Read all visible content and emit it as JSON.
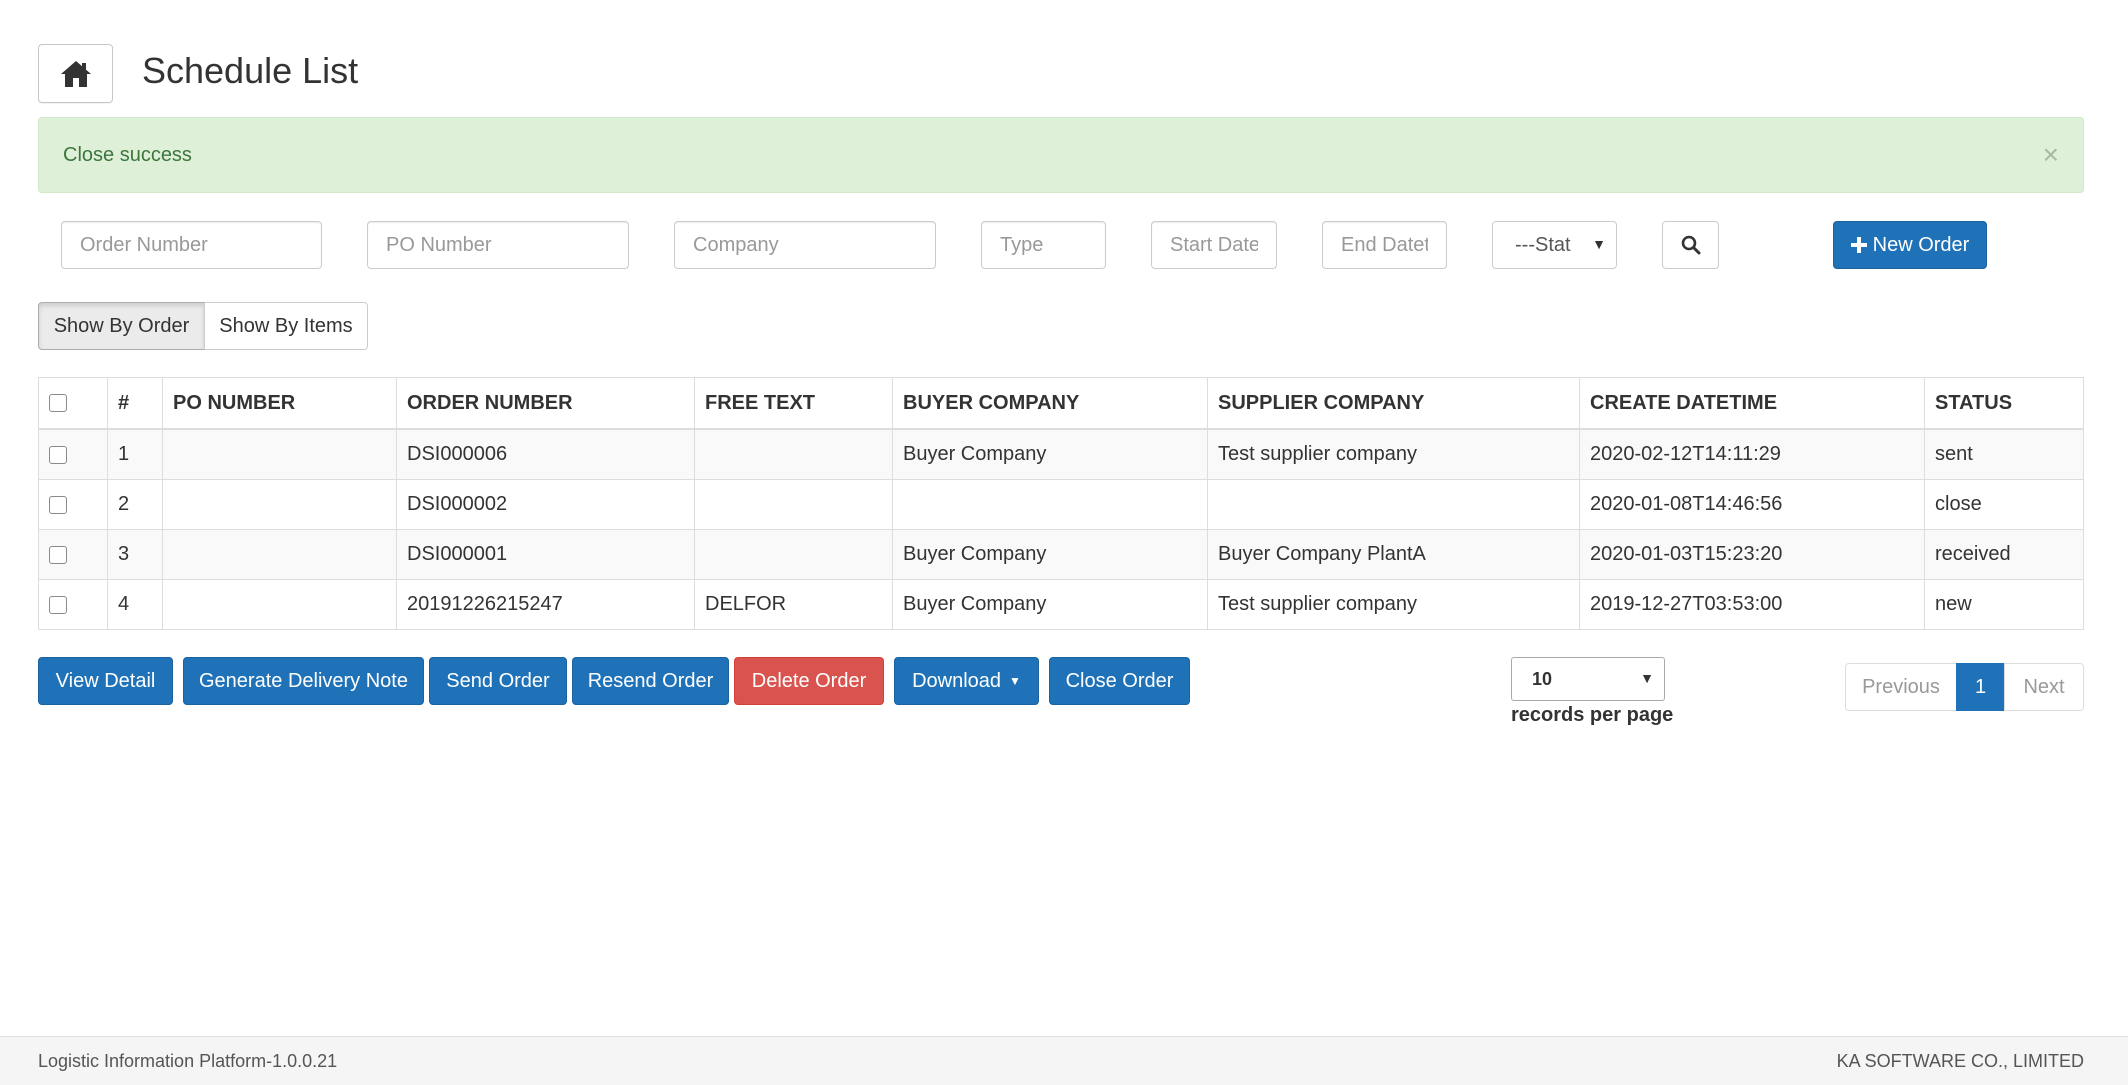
{
  "header": {
    "title": "Schedule List",
    "home_icon": "home-icon"
  },
  "alert": {
    "message": "Close success",
    "close_glyph": "×"
  },
  "filters": {
    "order_number_placeholder": "Order Number",
    "po_number_placeholder": "PO Number",
    "company_placeholder": "Company",
    "type_placeholder": "Type",
    "start_date_placeholder": "Start Date",
    "end_date_placeholder": "End Datet",
    "status_selected": "---Stat",
    "new_order_label": "New Order"
  },
  "view_toggle": {
    "by_order": "Show By Order",
    "by_items": "Show By Items",
    "active": "by_order"
  },
  "table": {
    "columns": [
      "#",
      "PO NUMBER",
      "ORDER NUMBER",
      "FREE TEXT",
      "BUYER COMPANY",
      "SUPPLIER COMPANY",
      "CREATE DATETIME",
      "STATUS"
    ],
    "rows": [
      {
        "index": "1",
        "po_number": "",
        "order_number": "DSI000006",
        "free_text": "",
        "buyer": "Buyer Company",
        "supplier": "Test supplier company",
        "created": "2020-02-12T14:11:29",
        "status": "sent"
      },
      {
        "index": "2",
        "po_number": "",
        "order_number": "DSI000002",
        "free_text": "",
        "buyer": "",
        "supplier": "",
        "created": "2020-01-08T14:46:56",
        "status": "close"
      },
      {
        "index": "3",
        "po_number": "",
        "order_number": "DSI000001",
        "free_text": "",
        "buyer": "Buyer Company",
        "supplier": "Buyer Company PlantA",
        "created": "2020-01-03T15:23:20",
        "status": "received"
      },
      {
        "index": "4",
        "po_number": "",
        "order_number": "20191226215247",
        "free_text": "DELFOR",
        "buyer": "Buyer Company",
        "supplier": "Test supplier company",
        "created": "2019-12-27T03:53:00",
        "status": "new"
      }
    ]
  },
  "actions": {
    "view_detail": "View Detail",
    "generate_delivery_note": "Generate Delivery Note",
    "send_order": "Send Order",
    "resend_order": "Resend Order",
    "delete_order": "Delete Order",
    "download": "Download",
    "close_order": "Close Order"
  },
  "paging": {
    "records_per_page_value": "10",
    "records_per_page_label": "records per page",
    "previous": "Previous",
    "current_page": "1",
    "next": "Next"
  },
  "footer": {
    "left": "Logistic Information Platform-1.0.0.21",
    "right": "KA SOFTWARE CO., LIMITED"
  },
  "colors": {
    "primary": "#1f72b8",
    "danger": "#d9534f",
    "success_bg": "#dff0d8",
    "success_text": "#3c763d"
  }
}
